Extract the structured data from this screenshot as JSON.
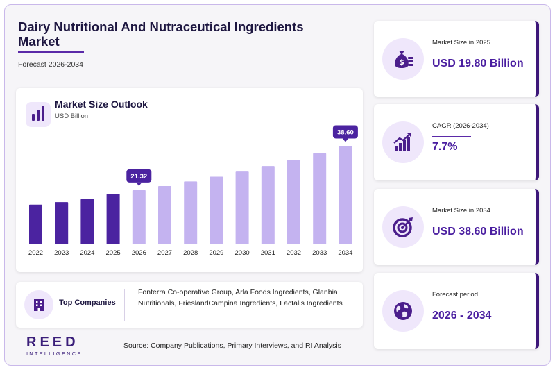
{
  "header": {
    "title": "Dairy Nutritional And Nutraceutical Ingredients Market",
    "subtitle": "Forecast 2026-2034"
  },
  "chart_data": {
    "type": "bar",
    "title": "Market Size Outlook",
    "unit": "USD Billion",
    "categories": [
      "2022",
      "2023",
      "2024",
      "2025",
      "2026",
      "2027",
      "2028",
      "2029",
      "2030",
      "2031",
      "2032",
      "2033",
      "2034"
    ],
    "values": [
      15.6,
      16.6,
      17.8,
      19.8,
      21.32,
      22.9,
      24.7,
      26.6,
      28.6,
      30.8,
      33.2,
      35.8,
      38.6
    ],
    "historical_count": 4,
    "colors": {
      "historical": "#4b23a0",
      "forecast": "#c4b3f0",
      "callout": "#4b23a0"
    },
    "callouts": [
      {
        "category": "2026",
        "label": "21.32"
      },
      {
        "category": "2034",
        "label": "38.60"
      }
    ],
    "ylim": [
      0,
      42
    ],
    "grid": false,
    "legend": "none"
  },
  "companies": {
    "label": "Top Companies",
    "text": "Fonterra Co-operative Group, Arla Foods Ingredients, Glanbia Nutritionals, FrieslandCampina Ingredients, Lactalis Ingredients"
  },
  "stats": [
    {
      "label": "Market Size in 2025",
      "value": "USD 19.80 Billion",
      "icon": "money-bag-icon"
    },
    {
      "label": "CAGR (2026-2034)",
      "value": "7.7%",
      "icon": "growth-chart-icon"
    },
    {
      "label": "Market Size in 2034",
      "value": "USD 38.60 Billion",
      "icon": "target-icon"
    },
    {
      "label": "Forecast period",
      "value": "2026 - 2034",
      "icon": "globe-icon"
    }
  ],
  "logo": {
    "main": "REED",
    "sub": "INTELLIGENCE"
  },
  "source": "Source: Company Publications, Primary Interviews, and RI Analysis"
}
